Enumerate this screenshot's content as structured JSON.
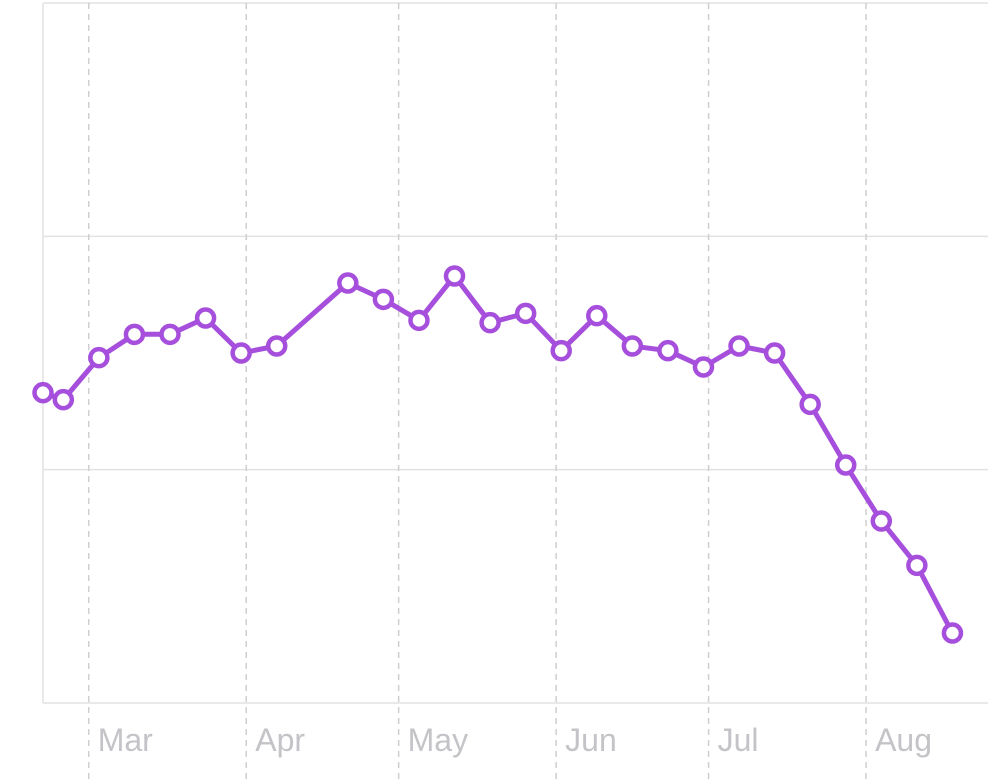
{
  "chart_data": {
    "type": "line",
    "grid": true,
    "colors": {
      "series": "#a64fdc",
      "grid": "#e2e2e4",
      "tick_label": "#c4c4c8"
    },
    "xlim": [
      "2024-02-21",
      "2024-08-25"
    ],
    "ylim": [
      0,
      3
    ],
    "x_ticks": [
      {
        "label": "Mar",
        "date": "2024-03-01"
      },
      {
        "label": "Apr",
        "date": "2024-04-01"
      },
      {
        "label": "May",
        "date": "2024-05-01"
      },
      {
        "label": "Jun",
        "date": "2024-06-01"
      },
      {
        "label": "Jul",
        "date": "2024-07-01"
      },
      {
        "label": "Aug",
        "date": "2024-08-01"
      }
    ],
    "y_gridlines": [
      0,
      1,
      2,
      3
    ],
    "series": [
      {
        "values": [
          {
            "x": "2024-02-21",
            "y": 1.33
          },
          {
            "x": "2024-02-25",
            "y": 1.3
          },
          {
            "x": "2024-03-03",
            "y": 1.48
          },
          {
            "x": "2024-03-10",
            "y": 1.58
          },
          {
            "x": "2024-03-17",
            "y": 1.58
          },
          {
            "x": "2024-03-24",
            "y": 1.65
          },
          {
            "x": "2024-03-31",
            "y": 1.5
          },
          {
            "x": "2024-04-07",
            "y": 1.53
          },
          {
            "x": "2024-04-21",
            "y": 1.8
          },
          {
            "x": "2024-04-28",
            "y": 1.73
          },
          {
            "x": "2024-05-05",
            "y": 1.64
          },
          {
            "x": "2024-05-12",
            "y": 1.83
          },
          {
            "x": "2024-05-19",
            "y": 1.63
          },
          {
            "x": "2024-05-26",
            "y": 1.67
          },
          {
            "x": "2024-06-02",
            "y": 1.51
          },
          {
            "x": "2024-06-09",
            "y": 1.66
          },
          {
            "x": "2024-06-16",
            "y": 1.53
          },
          {
            "x": "2024-06-23",
            "y": 1.51
          },
          {
            "x": "2024-06-30",
            "y": 1.44
          },
          {
            "x": "2024-07-07",
            "y": 1.53
          },
          {
            "x": "2024-07-14",
            "y": 1.5
          },
          {
            "x": "2024-07-21",
            "y": 1.28
          },
          {
            "x": "2024-07-28",
            "y": 1.02
          },
          {
            "x": "2024-08-04",
            "y": 0.78
          },
          {
            "x": "2024-08-11",
            "y": 0.59
          },
          {
            "x": "2024-08-18",
            "y": 0.3
          }
        ]
      }
    ]
  }
}
